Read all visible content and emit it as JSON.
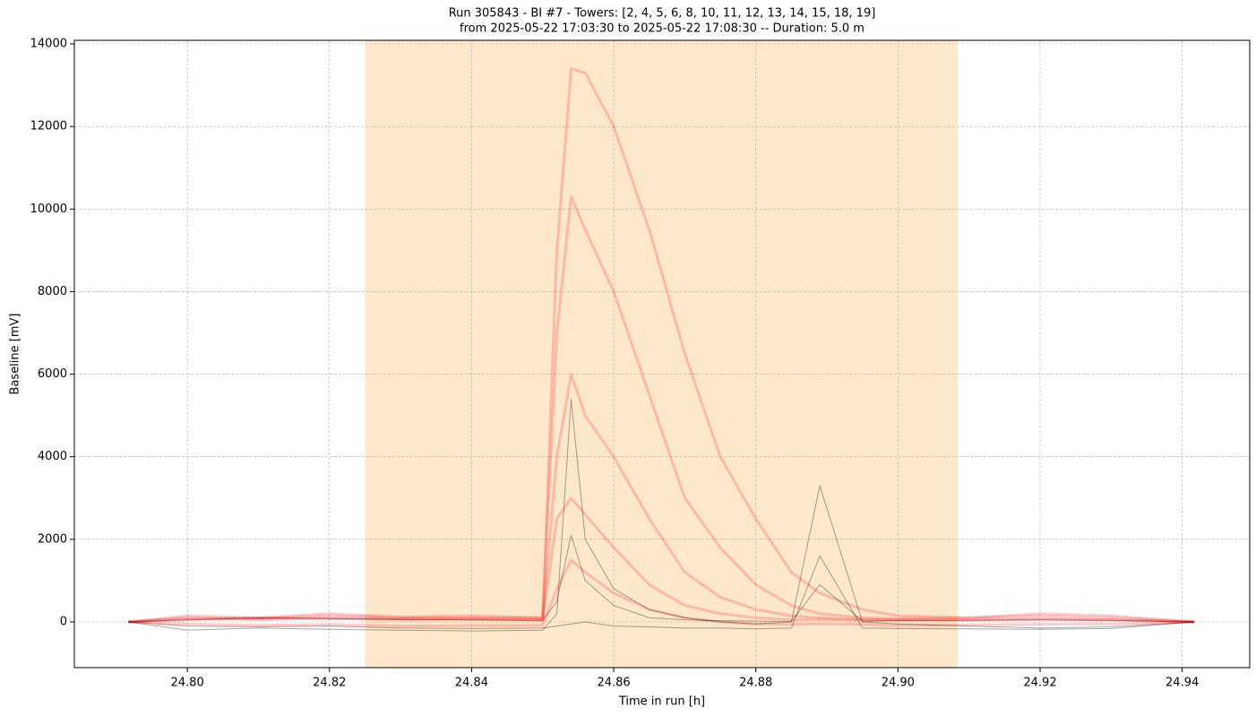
{
  "chart_data": {
    "type": "line",
    "title": "Run 305843  -  BI #7  -  Towers: [2, 4, 5, 6, 8, 10, 11, 12, 13, 14, 15, 18, 19]",
    "subtitle": "from  2025-05-22 17:03:30  to  2025-05-22 17:08:30 -- Duration: 5.0 m",
    "x_label": "Time in run [h]",
    "y_label": "Baseline [mV]",
    "xlim": [
      24.7841,
      24.9495
    ],
    "ylim": [
      -1107,
      14087
    ],
    "xticks": [
      {
        "value": 24.8,
        "label": "24.80"
      },
      24.82,
      24.84,
      24.86,
      24.88,
      {
        "value": 24.9,
        "label": "24.90"
      },
      24.92,
      24.94
    ],
    "yticks": [
      0,
      2000,
      4000,
      6000,
      8000,
      10000,
      12000,
      14000
    ],
    "grid": true,
    "span": {
      "x": [
        24.825,
        24.9084
      ],
      "color": "#fde8cc"
    },
    "x": [
      24.7917,
      24.8,
      24.81,
      24.82,
      24.83,
      24.84,
      24.85,
      24.852,
      24.854,
      24.856,
      24.86,
      24.865,
      24.87,
      24.875,
      24.88,
      24.885,
      24.889,
      24.895,
      24.9,
      24.91,
      24.92,
      24.93,
      24.9417
    ],
    "series": [
      {
        "color": "#ff0000",
        "values": [
          0,
          150,
          100,
          200,
          120,
          150,
          100,
          9000,
          13400,
          13300,
          12000,
          9500,
          6500,
          4000,
          2500,
          1200,
          700,
          300,
          150,
          100,
          200,
          150,
          0
        ]
      },
      {
        "color": "#ff0000",
        "values": [
          0,
          100,
          80,
          150,
          100,
          100,
          100,
          7000,
          10300,
          9500,
          8000,
          5500,
          3000,
          1800,
          900,
          400,
          200,
          100,
          80,
          100,
          150,
          100,
          0
        ]
      },
      {
        "color": "#ff0000",
        "values": [
          0,
          50,
          100,
          80,
          60,
          80,
          50,
          4000,
          6000,
          5000,
          4000,
          2500,
          1200,
          600,
          300,
          150,
          100,
          60,
          50,
          60,
          80,
          50,
          0
        ]
      },
      {
        "color": "#ff0000",
        "values": [
          0,
          80,
          60,
          90,
          70,
          60,
          50,
          2500,
          3000,
          2600,
          1800,
          900,
          400,
          200,
          100,
          50,
          60,
          40,
          50,
          40,
          60,
          50,
          0
        ]
      },
      {
        "color": "#ff0000",
        "values": [
          0,
          -50,
          -80,
          -60,
          -100,
          -90,
          -80,
          800,
          1500,
          1200,
          700,
          300,
          100,
          0,
          -50,
          -60,
          -50,
          -60,
          -80,
          -70,
          -60,
          -50,
          0
        ]
      },
      {
        "color": "#000000",
        "values": [
          0,
          -200,
          -150,
          -180,
          -200,
          -220,
          -200,
          200,
          5400,
          2000,
          800,
          300,
          100,
          0,
          -50,
          0,
          3300,
          0,
          -50,
          -100,
          -150,
          -120,
          0
        ]
      },
      {
        "color": "#000000",
        "values": [
          0,
          -100,
          -120,
          -100,
          -150,
          -160,
          -150,
          -100,
          -50,
          0,
          -100,
          -120,
          -150,
          -150,
          -170,
          -150,
          1600,
          -150,
          -160,
          -170,
          -180,
          -160,
          0
        ]
      },
      {
        "color": "#000000",
        "values": [
          0,
          50,
          100,
          80,
          60,
          50,
          40,
          500,
          2100,
          1000,
          400,
          100,
          50,
          30,
          20,
          10,
          900,
          20,
          30,
          40,
          50,
          40,
          0
        ]
      }
    ]
  }
}
